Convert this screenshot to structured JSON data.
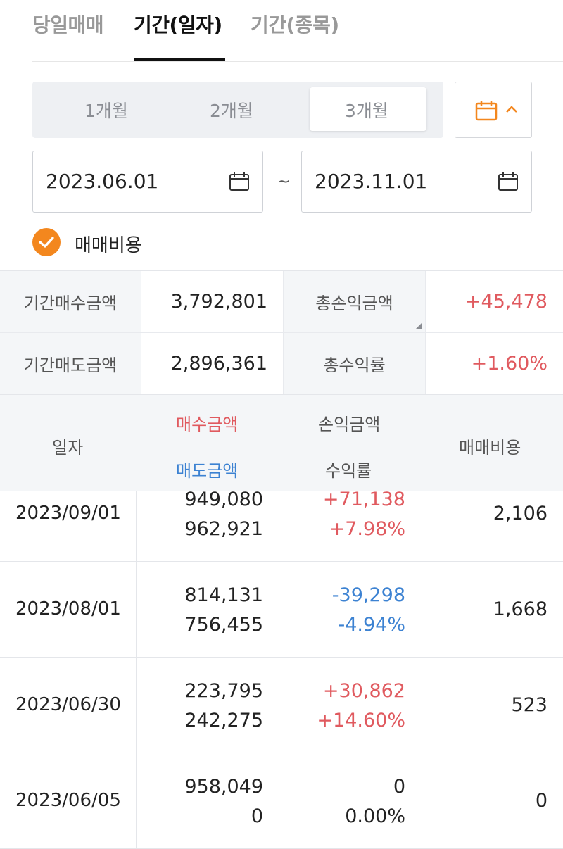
{
  "tabs": [
    "당일매매",
    "기간(일자)",
    "기간(종목)"
  ],
  "period": {
    "options": [
      "1개월",
      "2개월",
      "3개월"
    ],
    "selected": "3개월"
  },
  "dates": {
    "start": "2023.06.01",
    "separator": "~",
    "end": "2023.11.01"
  },
  "fee_checkbox": {
    "label": "매매비용",
    "checked": true
  },
  "summary": {
    "buy_label": "기간매수금액",
    "buy_value": "3,792,801",
    "pl_label": "총손익금액",
    "pl_value": "+45,478",
    "sell_label": "기간매도금액",
    "sell_value": "2,896,361",
    "rate_label": "총수익률",
    "rate_value": "+1.60%"
  },
  "table": {
    "headers": {
      "date": "일자",
      "buy": "매수금액",
      "sell": "매도금액",
      "pl": "손익금액",
      "rate": "수익률",
      "fee": "매매비용"
    },
    "rows": [
      {
        "date": "2023/09/01",
        "buy": "949,080",
        "sell": "962,921",
        "pl": "+71,138",
        "rate": "+7.98%",
        "fee": "2,106"
      },
      {
        "date": "2023/08/01",
        "buy": "814,131",
        "sell": "756,455",
        "pl": "-39,298",
        "rate": "-4.94%",
        "fee": "1,668"
      },
      {
        "date": "2023/06/30",
        "buy": "223,795",
        "sell": "242,275",
        "pl": "+30,862",
        "rate": "+14.60%",
        "fee": "523"
      },
      {
        "date": "2023/06/05",
        "buy": "958,049",
        "sell": "0",
        "pl": "0",
        "rate": "0.00%",
        "fee": "0"
      }
    ]
  },
  "colors": {
    "accent": "#f3871e",
    "positive": "#e05a5f",
    "negative": "#3c82d2"
  },
  "icons": {
    "calendar": "calendar-icon",
    "chevron": "chevron-up-icon",
    "check": "check-icon"
  }
}
